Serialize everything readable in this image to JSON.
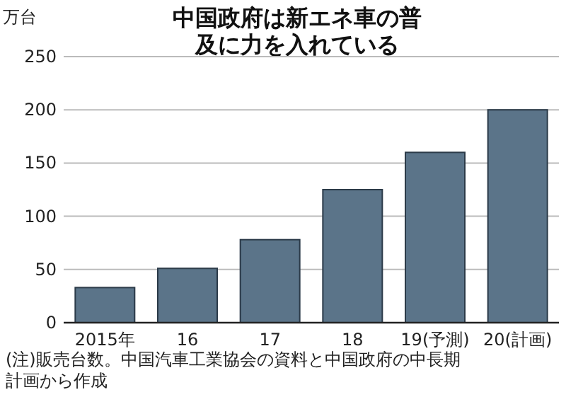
{
  "chart_data": {
    "type": "bar",
    "title": "中国政府は新エネ車の普及に力を入れている",
    "ylabel": "万台",
    "categories": [
      "2015年",
      "16",
      "17",
      "18",
      "19(予測)",
      "20(計画)"
    ],
    "values": [
      33,
      51,
      78,
      125,
      160,
      200
    ],
    "color": "#5b7489",
    "ylim": [
      0,
      250
    ],
    "yticks": [
      0,
      50,
      100,
      150,
      200,
      250
    ],
    "grid": "y",
    "annotations": [
      "(注)販売台数。中国汽車工業協会の資料と中国政府の中長期計画から作成"
    ]
  }
}
